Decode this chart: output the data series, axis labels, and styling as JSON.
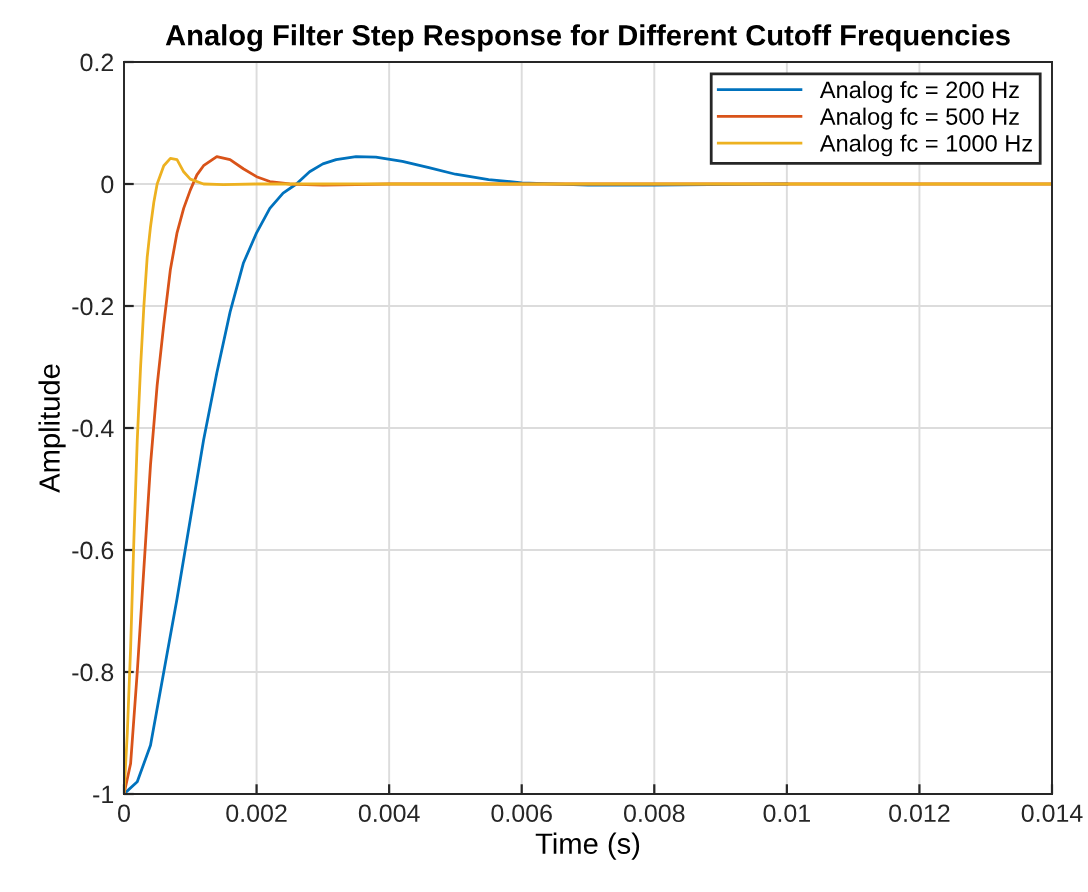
{
  "chart_data": {
    "type": "line",
    "title": "Analog Filter Step Response for Different Cutoff Frequencies",
    "xlabel": "Time (s)",
    "ylabel": "Amplitude",
    "xlim": [
      0,
      0.014
    ],
    "xticks": [
      0,
      0.002,
      0.004,
      0.006,
      0.008,
      0.01,
      0.012,
      0.014
    ],
    "ylim": [
      -1,
      0.2
    ],
    "yticks": [
      -1,
      -0.8,
      -0.6,
      -0.4,
      -0.2,
      0,
      0.2
    ],
    "grid": true,
    "legend": "top right",
    "line_style": "solid",
    "marker": "none",
    "series": [
      {
        "name": "Analog fc = 200 Hz",
        "color": "#0072bd",
        "x": [
          0,
          0.0002,
          0.0004,
          0.0006,
          0.0008,
          0.001,
          0.0012,
          0.0014,
          0.0016,
          0.0018,
          0.002,
          0.0022,
          0.0024,
          0.0026,
          0.0028,
          0.003,
          0.0032,
          0.0035,
          0.0038,
          0.0042,
          0.0046,
          0.005,
          0.0055,
          0.006,
          0.007,
          0.008,
          0.01
        ],
        "values": [
          -1,
          -0.98,
          -0.92,
          -0.8,
          -0.68,
          -0.55,
          -0.42,
          -0.31,
          -0.21,
          -0.13,
          -0.08,
          -0.04,
          -0.015,
          0,
          0.02,
          0.033,
          0.04,
          0.045,
          0.044,
          0.037,
          0.027,
          0.016,
          0.007,
          0.002,
          -0.002,
          -0.002,
          0
        ]
      },
      {
        "name": "Analog fc = 500 Hz",
        "color": "#d95319",
        "x": [
          0,
          0.0001,
          0.0002,
          0.0003,
          0.0004,
          0.0005,
          0.0006,
          0.0007,
          0.0008,
          0.0009,
          0.001,
          0.0011,
          0.0012,
          0.0014,
          0.0016,
          0.0018,
          0.002,
          0.0022,
          0.0025,
          0.003,
          0.004,
          0.006,
          0.01,
          0.014
        ],
        "values": [
          -1,
          -0.95,
          -0.8,
          -0.63,
          -0.46,
          -0.33,
          -0.23,
          -0.14,
          -0.08,
          -0.04,
          -0.01,
          0.015,
          0.03,
          0.045,
          0.04,
          0.025,
          0.012,
          0.004,
          0,
          -0.002,
          0,
          0,
          0,
          0
        ]
      },
      {
        "name": "Analog fc = 1000 Hz",
        "color": "#edb120",
        "x": [
          0,
          5e-05,
          0.0001,
          0.00015,
          0.0002,
          0.00025,
          0.0003,
          0.00035,
          0.0004,
          0.00045,
          0.0005,
          0.0006,
          0.0007,
          0.0008,
          0.0009,
          0.001,
          0.0012,
          0.0015,
          0.002,
          0.004,
          0.014
        ],
        "values": [
          -1,
          -0.9,
          -0.76,
          -0.58,
          -0.42,
          -0.3,
          -0.2,
          -0.12,
          -0.07,
          -0.03,
          0,
          0.03,
          0.042,
          0.04,
          0.02,
          0.008,
          0,
          -0.001,
          0,
          0,
          0
        ]
      }
    ]
  }
}
